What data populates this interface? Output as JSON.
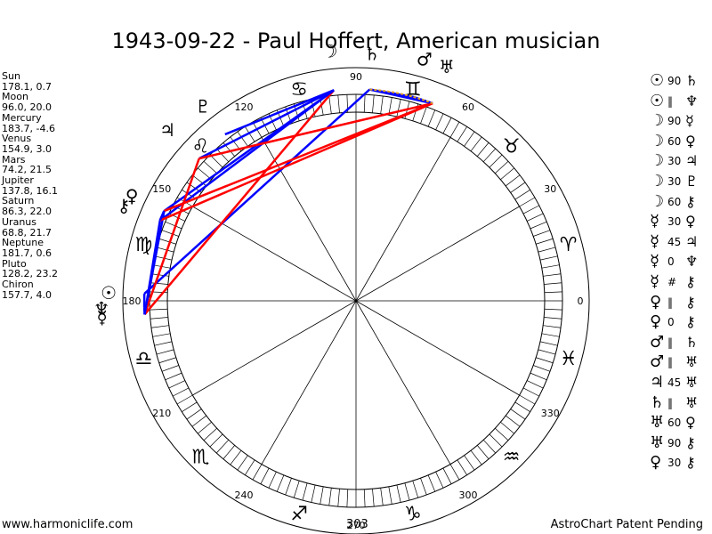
{
  "title": "1943-09-22 - Paul Hoffert, American musician",
  "planets": [
    {
      "name": "Sun",
      "value": "178.1, 0.7",
      "lon": 178.1,
      "glyph": "☉"
    },
    {
      "name": "Moon",
      "value": "96.0, 20.0",
      "lon": 96.0,
      "glyph": "☽"
    },
    {
      "name": "Mercury",
      "value": "183.7, -4.6",
      "lon": 183.7,
      "glyph": "☿"
    },
    {
      "name": "Venus",
      "value": "154.9, 3.0",
      "lon": 154.9,
      "glyph": "♀"
    },
    {
      "name": "Mars",
      "value": "74.2, 21.5",
      "lon": 74.2,
      "glyph": "♂"
    },
    {
      "name": "Jupiter",
      "value": "137.8, 16.1",
      "lon": 137.8,
      "glyph": "♃"
    },
    {
      "name": "Saturn",
      "value": "86.3, 22.0",
      "lon": 86.3,
      "glyph": "♄"
    },
    {
      "name": "Uranus",
      "value": "68.8, 21.7",
      "lon": 68.8,
      "glyph": "♅"
    },
    {
      "name": "Neptune",
      "value": "181.7, 0.6",
      "lon": 181.7,
      "glyph": "♆"
    },
    {
      "name": "Pluto",
      "value": "128.2, 23.2",
      "lon": 128.2,
      "glyph": "♇"
    },
    {
      "name": "Chiron",
      "value": "157.7, 4.0",
      "lon": 157.7,
      "glyph": "⚷"
    }
  ],
  "aspects": [
    {
      "p1": "☉",
      "asp": "90",
      "p2": "♄",
      "a": 178.1,
      "b": 86.3,
      "color": "#0000ff"
    },
    {
      "p1": "☉",
      "asp": "‖",
      "p2": "♆",
      "a": 178.1,
      "b": 181.7,
      "color": "#0000ff"
    },
    {
      "p1": "☽",
      "asp": "90",
      "p2": "☿",
      "a": 96.0,
      "b": 183.7,
      "color": "#ff0000"
    },
    {
      "p1": "☽",
      "asp": "60",
      "p2": "♀",
      "a": 96.0,
      "b": 154.9,
      "color": "#0000ff"
    },
    {
      "p1": "☽",
      "asp": "30",
      "p2": "♃",
      "a": 96.0,
      "b": 137.8,
      "color": "#0000ff"
    },
    {
      "p1": "☽",
      "asp": "30",
      "p2": "♇",
      "a": 96.0,
      "b": 128.2,
      "color": "#0000ff"
    },
    {
      "p1": "☽",
      "asp": "60",
      "p2": "⚷",
      "a": 96.0,
      "b": 157.7,
      "color": "#0000ff"
    },
    {
      "p1": "☿",
      "asp": "30",
      "p2": "♀",
      "a": 183.7,
      "b": 154.9,
      "color": "#0000ff"
    },
    {
      "p1": "☿",
      "asp": "45",
      "p2": "♃",
      "a": 183.7,
      "b": 137.8,
      "color": "#ff0000"
    },
    {
      "p1": "☿",
      "asp": "0",
      "p2": "♆",
      "a": 183.7,
      "b": 181.7,
      "color": "#0000ff"
    },
    {
      "p1": "☿",
      "asp": "#",
      "p2": "⚷",
      "a": 183.7,
      "b": 157.7,
      "color": "#0000ff"
    },
    {
      "p1": "♀",
      "asp": "‖",
      "p2": "⚷",
      "a": 154.9,
      "b": 157.7,
      "color": "#0000ff"
    },
    {
      "p1": "♀",
      "asp": "0",
      "p2": "⚷",
      "a": 154.9,
      "b": 157.7,
      "color": "#0000ff"
    },
    {
      "p1": "♂",
      "asp": "‖",
      "p2": "♄",
      "a": 74.2,
      "b": 86.3,
      "color": "#0000ff"
    },
    {
      "p1": "♂",
      "asp": "‖",
      "p2": "♅",
      "a": 74.2,
      "b": 68.8,
      "color": "#0000ff"
    },
    {
      "p1": "♃",
      "asp": "45",
      "p2": "♅",
      "a": 137.8,
      "b": 68.8,
      "color": "#ff0000"
    },
    {
      "p1": "♄",
      "asp": "‖",
      "p2": "♅",
      "a": 86.3,
      "b": 68.8,
      "color": "#0000ff"
    },
    {
      "p1": "♅",
      "asp": "60",
      "p2": "♀",
      "a": 68.8,
      "b": 154.9,
      "color": "#ff0000"
    },
    {
      "p1": "♅",
      "asp": "90",
      "p2": "⚷",
      "a": 68.8,
      "b": 157.7,
      "color": "#ff0000"
    },
    {
      "p1": "♀",
      "asp": "30",
      "p2": "⚷",
      "a": 154.9,
      "b": 157.7,
      "color": "#0000ff"
    }
  ],
  "degree_labels": [
    {
      "text": "0",
      "deg": 0
    },
    {
      "text": "30",
      "deg": 30
    },
    {
      "text": "60",
      "deg": 60
    },
    {
      "text": "90",
      "deg": 90
    },
    {
      "text": "120",
      "deg": 120
    },
    {
      "text": "150",
      "deg": 150
    },
    {
      "text": "180",
      "deg": 180
    },
    {
      "text": "210",
      "deg": 210
    },
    {
      "text": "240",
      "deg": 240
    },
    {
      "text": "270",
      "deg": 270
    },
    {
      "text": "300",
      "deg": 300
    },
    {
      "text": "330",
      "deg": 330
    }
  ],
  "zodiac": [
    {
      "name": "aries",
      "glyph": "♈",
      "deg": 15
    },
    {
      "name": "taurus",
      "glyph": "♉",
      "deg": 45
    },
    {
      "name": "gemini",
      "glyph": "♊",
      "deg": 75
    },
    {
      "name": "cancer",
      "glyph": "♋",
      "deg": 105
    },
    {
      "name": "leo",
      "glyph": "♌",
      "deg": 135
    },
    {
      "name": "virgo",
      "glyph": "♍",
      "deg": 165
    },
    {
      "name": "libra",
      "glyph": "♎",
      "deg": 195
    },
    {
      "name": "scorpio",
      "glyph": "♏",
      "deg": 225
    },
    {
      "name": "sagittarius",
      "glyph": "♐",
      "deg": 255
    },
    {
      "name": "capricorn",
      "glyph": "♑",
      "deg": 285
    },
    {
      "name": "aquarius",
      "glyph": "♒",
      "deg": 315
    },
    {
      "name": "pisces",
      "glyph": "♓",
      "deg": 345
    }
  ],
  "footer": {
    "left": "www.harmoniclife.com",
    "center": "303",
    "right": "AstroChart Patent Pending"
  }
}
